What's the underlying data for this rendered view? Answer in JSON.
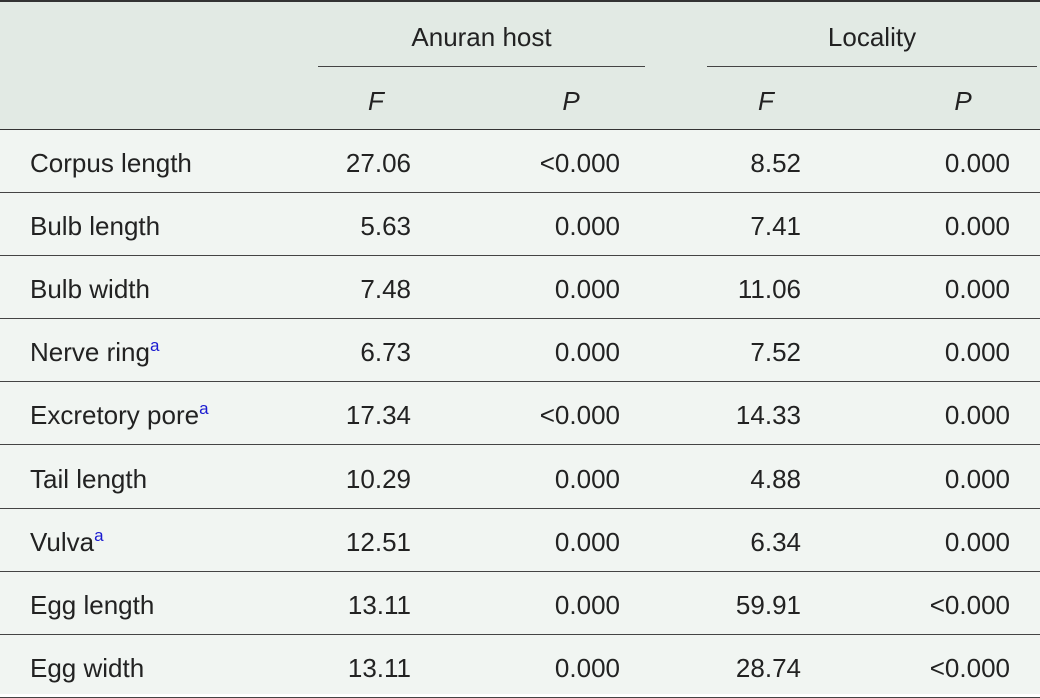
{
  "table": {
    "groups": [
      "Anuran host",
      "Locality"
    ],
    "subheaders": [
      "F",
      "P",
      "F",
      "P"
    ],
    "rows": [
      {
        "label": "Corpus length",
        "cells": [
          "27.06",
          "<0.000",
          "8.52",
          "0.000"
        ]
      },
      {
        "label": "Bulb length",
        "cells": [
          "5.63",
          "0.000",
          "7.41",
          "0.000"
        ]
      },
      {
        "label": "Bulb width",
        "cells": [
          "7.48",
          "0.000",
          "11.06",
          "0.000"
        ]
      },
      {
        "label": "Nerve ring",
        "note": "a",
        "cells": [
          "6.73",
          "0.000",
          "7.52",
          "0.000"
        ]
      },
      {
        "label": "Excretory pore",
        "note": "a",
        "cells": [
          "17.34",
          "<0.000",
          "14.33",
          "0.000"
        ]
      },
      {
        "label": "Tail length",
        "cells": [
          "10.29",
          "0.000",
          "4.88",
          "0.000"
        ]
      },
      {
        "label": "Vulva",
        "note": "a",
        "cells": [
          "12.51",
          "0.000",
          "6.34",
          "0.000"
        ]
      },
      {
        "label": "Egg length",
        "cells": [
          "13.11",
          "0.000",
          "59.91",
          "<0.000"
        ]
      },
      {
        "label": "Egg width",
        "cells": [
          "13.11",
          "0.000",
          "28.74",
          "<0.000"
        ]
      }
    ]
  }
}
